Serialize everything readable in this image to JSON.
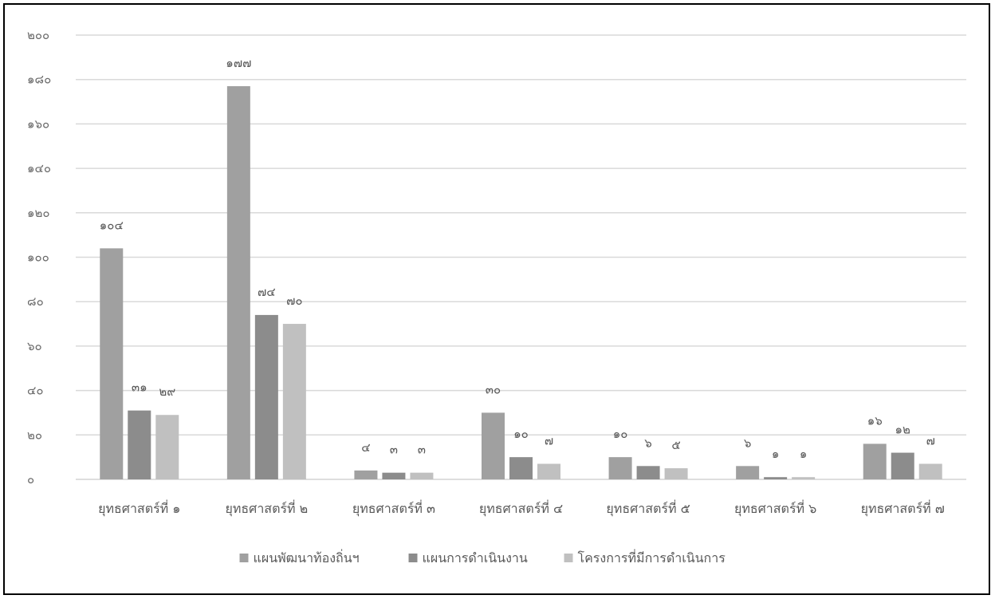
{
  "chart_data": {
    "type": "bar",
    "title": "",
    "xlabel": "",
    "ylabel": "",
    "ylim": [
      0,
      200
    ],
    "yticks": [
      0,
      20,
      40,
      60,
      80,
      100,
      120,
      140,
      160,
      180,
      200
    ],
    "ytick_labels": [
      "๐",
      "๒๐",
      "๔๐",
      "๖๐",
      "๘๐",
      "๑๐๐",
      "๑๒๐",
      "๑๔๐",
      "๑๖๐",
      "๑๘๐",
      "๒๐๐"
    ],
    "grid": true,
    "legend_position": "bottom",
    "categories": [
      "ยุทธศาสตร์ที่ ๑",
      "ยุทธศาสตร์ที่ ๒",
      "ยุทธศาสตร์ที่ ๓",
      "ยุทธศาสตร์ที่ ๔",
      "ยุทธศาสตร์ที่ ๕",
      "ยุทธศาสตร์ที่ ๖",
      "ยุทธศาสตร์ที่ ๗"
    ],
    "series": [
      {
        "name": "แผนพัฒนาท้องถิ่นฯ",
        "color": "#a0a0a0",
        "values": [
          104,
          177,
          4,
          30,
          10,
          6,
          16
        ],
        "labels": [
          "๑๐๔",
          "๑๗๗",
          "๔",
          "๓๐",
          "๑๐",
          "๖",
          "๑๖"
        ]
      },
      {
        "name": "แผนการดำเนินงาน",
        "color": "#8c8c8c",
        "values": [
          31,
          74,
          3,
          10,
          6,
          1,
          12
        ],
        "labels": [
          "๓๑",
          "๗๔",
          "๓",
          "๑๐",
          "๖",
          "๑",
          "๑๒"
        ]
      },
      {
        "name": "โครงการที่มีการดำเนินการ",
        "color": "#c0c0c0",
        "values": [
          29,
          70,
          3,
          7,
          5,
          1,
          7
        ],
        "labels": [
          "๒๙",
          "๗๐",
          "๓",
          "๗",
          "๕",
          "๑",
          "๗"
        ]
      }
    ]
  }
}
